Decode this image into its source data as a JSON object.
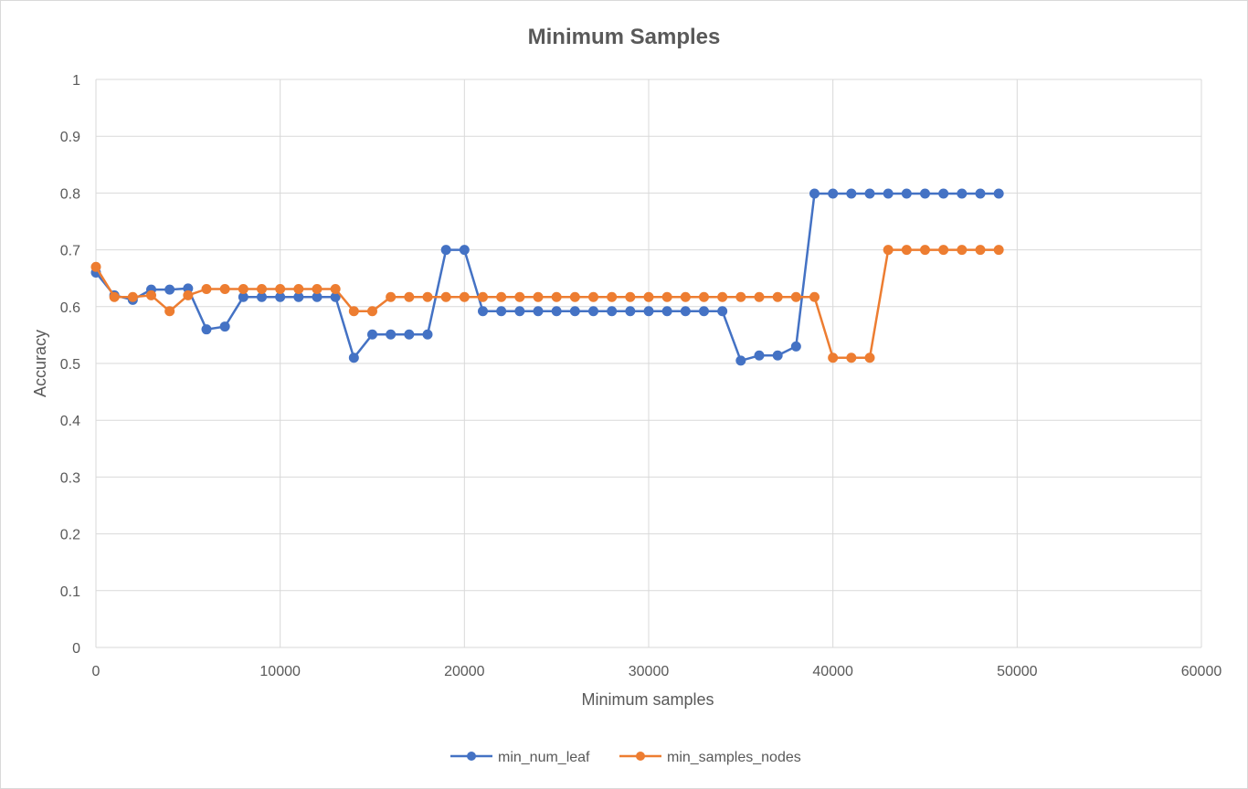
{
  "chart_data": {
    "type": "line",
    "title": "Minimum Samples",
    "xlabel": "Minimum samples",
    "ylabel": "Accuracy",
    "xlim": [
      0,
      60000
    ],
    "ylim": [
      0,
      1
    ],
    "x_ticks": [
      "0",
      "10000",
      "20000",
      "30000",
      "40000",
      "50000",
      "60000"
    ],
    "y_ticks": [
      "0",
      "0.1",
      "0.2",
      "0.3",
      "0.4",
      "0.5",
      "0.6",
      "0.7",
      "0.8",
      "0.9",
      "1"
    ],
    "grid": true,
    "legend_position": "bottom",
    "x": [
      0,
      1000,
      2000,
      3000,
      4000,
      5000,
      6000,
      7000,
      8000,
      9000,
      10000,
      11000,
      12000,
      13000,
      14000,
      15000,
      16000,
      17000,
      18000,
      19000,
      20000,
      21000,
      22000,
      23000,
      24000,
      25000,
      26000,
      27000,
      28000,
      29000,
      30000,
      31000,
      32000,
      33000,
      34000,
      35000,
      36000,
      37000,
      38000,
      39000,
      40000,
      41000,
      42000,
      43000,
      44000,
      45000,
      46000,
      47000,
      48000,
      49000
    ],
    "series": [
      {
        "name": "min_num_leaf",
        "color": "#4472c4",
        "values": [
          0.66,
          0.62,
          0.612,
          0.63,
          0.63,
          0.632,
          0.56,
          0.565,
          0.617,
          0.617,
          0.617,
          0.617,
          0.617,
          0.617,
          0.51,
          0.551,
          0.551,
          0.551,
          0.551,
          0.7,
          0.7,
          0.592,
          0.592,
          0.592,
          0.592,
          0.592,
          0.592,
          0.592,
          0.592,
          0.592,
          0.592,
          0.592,
          0.592,
          0.592,
          0.592,
          0.505,
          0.514,
          0.514,
          0.53,
          0.799,
          0.799,
          0.799,
          0.799,
          0.799,
          0.799,
          0.799,
          0.799,
          0.799,
          0.799,
          0.799
        ]
      },
      {
        "name": "min_samples_nodes",
        "color": "#ed7d31",
        "values": [
          0.67,
          0.617,
          0.617,
          0.62,
          0.592,
          0.62,
          0.631,
          0.631,
          0.631,
          0.631,
          0.631,
          0.631,
          0.631,
          0.631,
          0.592,
          0.592,
          0.617,
          0.617,
          0.617,
          0.617,
          0.617,
          0.617,
          0.617,
          0.617,
          0.617,
          0.617,
          0.617,
          0.617,
          0.617,
          0.617,
          0.617,
          0.617,
          0.617,
          0.617,
          0.617,
          0.617,
          0.617,
          0.617,
          0.617,
          0.617,
          0.51,
          0.51,
          0.51,
          0.7,
          0.7,
          0.7,
          0.7,
          0.7,
          0.7,
          0.7
        ]
      }
    ]
  }
}
